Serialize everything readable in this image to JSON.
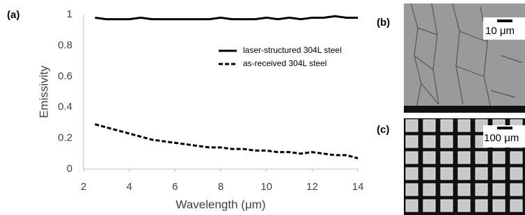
{
  "chart_data": {
    "type": "line",
    "xlabel": "Wavelength (μm)",
    "ylabel": "Emissivity",
    "x": [
      2.5,
      3,
      3.5,
      4,
      4.5,
      5,
      5.5,
      6,
      6.5,
      7,
      7.5,
      8,
      8.5,
      9,
      9.5,
      10,
      10.5,
      11,
      11.5,
      12,
      12.5,
      13,
      13.5,
      14
    ],
    "series": [
      {
        "name": "laser-structured 304L steel",
        "color": "#000000",
        "line_style": "solid",
        "values": [
          0.98,
          0.97,
          0.97,
          0.97,
          0.98,
          0.97,
          0.97,
          0.97,
          0.97,
          0.97,
          0.97,
          0.98,
          0.97,
          0.97,
          0.97,
          0.98,
          0.97,
          0.98,
          0.97,
          0.98,
          0.98,
          0.99,
          0.98,
          0.98
        ]
      },
      {
        "name": "as-received 304L steel",
        "color": "#000000",
        "line_style": "dashed",
        "values": [
          0.29,
          0.27,
          0.25,
          0.23,
          0.21,
          0.19,
          0.18,
          0.17,
          0.16,
          0.15,
          0.14,
          0.14,
          0.13,
          0.13,
          0.12,
          0.12,
          0.11,
          0.11,
          0.1,
          0.11,
          0.1,
          0.09,
          0.09,
          0.07
        ]
      }
    ],
    "xlim": [
      2,
      14
    ],
    "xticks": [
      2,
      4,
      6,
      8,
      10,
      12,
      14
    ],
    "ylim": [
      0,
      1
    ],
    "yticks": [
      0,
      0.2,
      0.4,
      0.6,
      0.8,
      1
    ],
    "grid": false,
    "legend": "upper right"
  },
  "panel_labels": [
    "(a)",
    "(b)",
    "(c)"
  ],
  "scale_bars": [
    "10 μm",
    "100 μm"
  ]
}
